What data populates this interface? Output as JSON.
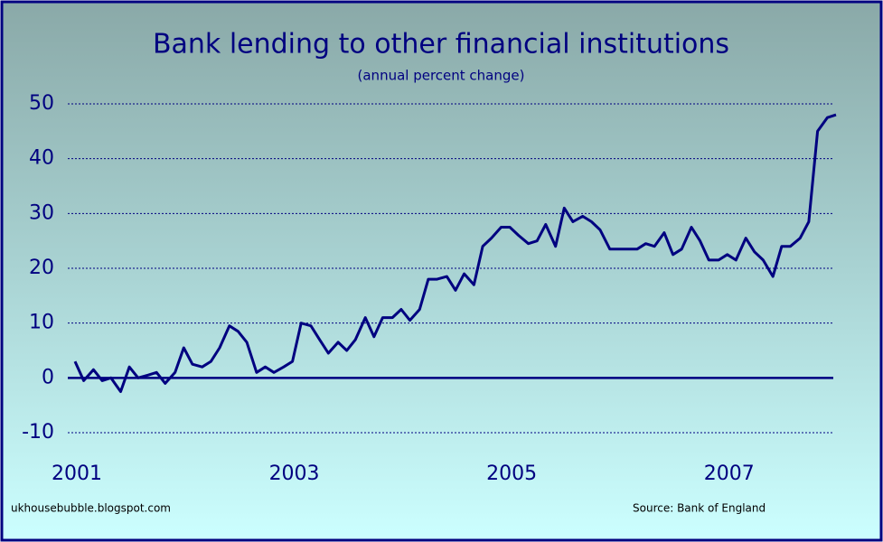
{
  "chart_data": {
    "type": "line",
    "title": "Bank lending to other financial institutions",
    "subtitle": "(annual percent change)",
    "credit": "ukhousebubble.blogspot.com",
    "source": "Source: Bank of England",
    "x": [
      2001,
      2001.08,
      2001.17,
      2001.25,
      2001.33,
      2001.42,
      2001.5,
      2001.58,
      2001.67,
      2001.75,
      2001.83,
      2001.92,
      2002,
      2002.08,
      2002.17,
      2002.25,
      2002.33,
      2002.42,
      2002.5,
      2002.58,
      2002.67,
      2002.75,
      2002.83,
      2002.92,
      2003,
      2003.08,
      2003.17,
      2003.25,
      2003.33,
      2003.42,
      2003.5,
      2003.58,
      2003.67,
      2003.75,
      2003.83,
      2003.92,
      2004,
      2004.08,
      2004.17,
      2004.25,
      2004.33,
      2004.42,
      2004.5,
      2004.58,
      2004.67,
      2004.75,
      2004.83,
      2004.92,
      2005,
      2005.08,
      2005.17,
      2005.25,
      2005.33,
      2005.42,
      2005.5,
      2005.58,
      2005.67,
      2005.75,
      2005.83,
      2005.92,
      2006,
      2006.08,
      2006.17,
      2006.25,
      2006.33,
      2006.42,
      2006.5,
      2006.58,
      2006.67,
      2006.75,
      2006.83,
      2006.92,
      2007,
      2007.08,
      2007.17,
      2007.25,
      2007.33,
      2007.42,
      2007.5,
      2007.58,
      2007.67,
      2007.75,
      2007.83,
      2007.92,
      2008
    ],
    "series": [
      {
        "name": "Bank lending",
        "color": "#000080",
        "values": [
          3,
          -0.5,
          1.5,
          -0.5,
          0,
          -2.5,
          2,
          0,
          0.5,
          1,
          -1,
          1,
          5.5,
          2.5,
          2,
          3,
          5.5,
          9.5,
          8.5,
          6.5,
          1,
          2,
          1,
          2,
          3,
          10,
          9.5,
          7,
          4.5,
          6.5,
          5,
          7,
          11,
          7.5,
          11,
          11,
          12.5,
          10.5,
          12.5,
          18,
          18,
          18.5,
          16,
          19,
          17,
          24,
          25.5,
          27.5,
          27.5,
          26,
          24.5,
          25,
          28,
          24,
          31,
          28.5,
          29.5,
          28.5,
          27,
          23.5,
          23.5,
          23.5,
          23.5,
          24.5,
          24,
          26.5,
          22.5,
          23.5,
          27.5,
          25,
          21.5,
          21.5,
          22.5,
          21.5,
          25.5,
          23,
          21.5,
          18.5,
          24,
          24,
          25.5,
          28.5,
          45,
          47.5,
          48
        ]
      }
    ],
    "xlim": [
      2001,
      2008
    ],
    "xticks": [
      2001,
      2003,
      2005,
      2007
    ],
    "ylim": [
      -10,
      50
    ],
    "yticks": [
      -10,
      0,
      10,
      20,
      30,
      40,
      50
    ],
    "grid": true
  }
}
